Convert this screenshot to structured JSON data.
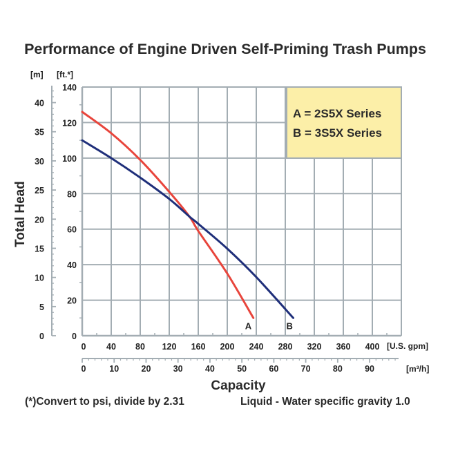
{
  "chart_data": {
    "type": "line",
    "title": "Performance of Engine Driven Self-Priming Trash Pumps",
    "xlabel": "Capacity",
    "ylabel": "Total Head",
    "x_primary": {
      "unit_label": "[U.S. gpm]",
      "range": [
        0,
        440
      ],
      "ticks": [
        0,
        40,
        80,
        120,
        160,
        200,
        240,
        280,
        320,
        360,
        400
      ],
      "gridlines": [
        0,
        40,
        80,
        120,
        160,
        200,
        240,
        280,
        320,
        360,
        400,
        440
      ]
    },
    "x_secondary": {
      "unit_label": "[m³/h]",
      "ticks": [
        0,
        10,
        20,
        30,
        40,
        50,
        60,
        70,
        80,
        90
      ],
      "gpm_per_m3h": 4.4029
    },
    "y_primary": {
      "unit_label": "[ft.*]",
      "range": [
        0,
        140
      ],
      "ticks": [
        0,
        20,
        40,
        60,
        80,
        100,
        120,
        140
      ]
    },
    "y_secondary": {
      "unit_label": "[m]",
      "ticks": [
        0,
        5,
        10,
        15,
        20,
        25,
        30,
        35,
        40
      ],
      "ft_per_m": 3.2808
    },
    "grid": true,
    "legend": {
      "placement": "top-right",
      "entries": [
        "A = 2S5X Series",
        "B = 3S5X Series"
      ],
      "background": "#fcefa8"
    },
    "series": [
      {
        "name": "A",
        "description": "2S5X Series",
        "color": "#e8453c",
        "x": [
          0,
          40,
          80,
          120,
          148,
          160,
          200,
          236
        ],
        "y": [
          126,
          114,
          99,
          81,
          67,
          59,
          35,
          10
        ]
      },
      {
        "name": "B",
        "description": "3S5X Series",
        "color": "#1f2f7a",
        "x": [
          0,
          40,
          80,
          120,
          148,
          160,
          200,
          240,
          291
        ],
        "y": [
          110,
          100,
          89,
          77,
          67,
          63,
          49,
          33,
          10
        ]
      }
    ],
    "footnotes": [
      "(*)Convert to psi, divide by 2.31",
      "Liquid - Water specific gravity 1.0"
    ]
  }
}
